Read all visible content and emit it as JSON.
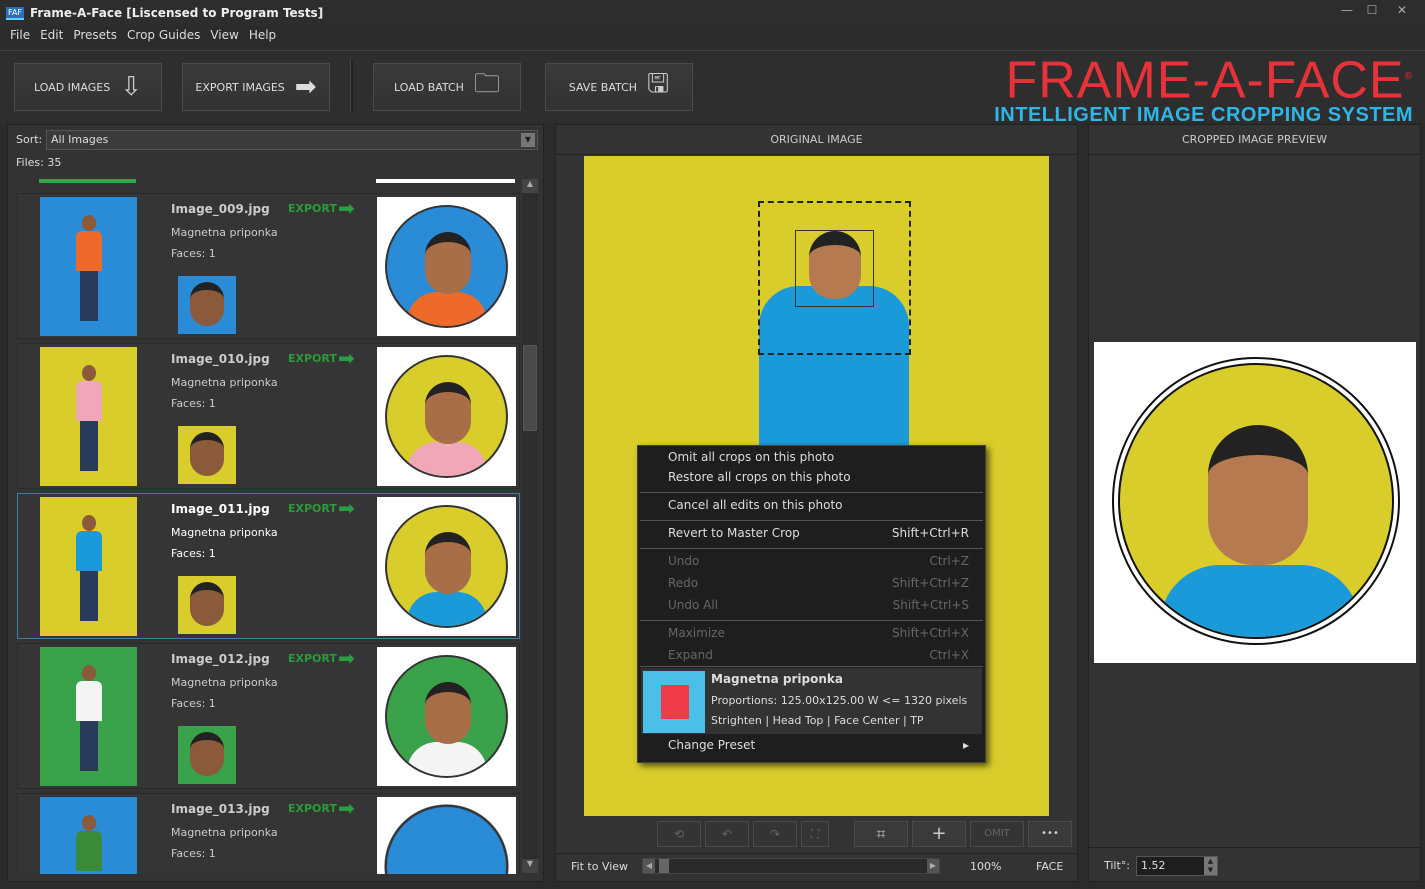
{
  "window": {
    "icon": "FAF",
    "title": "Frame-A-Face [Liscensed to Program Tests]",
    "controls": [
      "minimize-icon",
      "maximize-icon",
      "close-icon"
    ]
  },
  "menu": [
    "File",
    "Edit",
    "Presets",
    "Crop Guides",
    "View",
    "Help"
  ],
  "toolbar": {
    "load_images": "LOAD IMAGES",
    "export_images": "EXPORT IMAGES",
    "load_batch": "LOAD BATCH",
    "save_batch": "SAVE BATCH"
  },
  "logo": {
    "title": "FRAME-A-FACE",
    "registered": "®",
    "tagline": "INTELLIGENT IMAGE CROPPING SYSTEM"
  },
  "left": {
    "sort_label": "Sort:",
    "sort_value": "All Images",
    "files": "Files: 35",
    "items": [
      {
        "name": "Image_009.jpg",
        "preset": "Magnetna priponka",
        "faces": "Faces: 1",
        "export": "EXPORT",
        "bg": "#2a8bd6",
        "shirt": "#ee6a2a",
        "selected": false
      },
      {
        "name": "Image_010.jpg",
        "preset": "Magnetna priponka",
        "faces": "Faces: 1",
        "export": "EXPORT",
        "bg": "#d8cd2a",
        "shirt": "#f0a8b8",
        "selected": false
      },
      {
        "name": "Image_011.jpg",
        "preset": "Magnetna priponka",
        "faces": "Faces: 1",
        "export": "EXPORT",
        "bg": "#d8cd2a",
        "shirt": "#1a9ad8",
        "selected": true
      },
      {
        "name": "Image_012.jpg",
        "preset": "Magnetna priponka",
        "faces": "Faces: 1",
        "export": "EXPORT",
        "bg": "#3aa24a",
        "shirt": "#f4f4f4",
        "selected": false
      },
      {
        "name": "Image_013.jpg",
        "preset": "Magnetna priponka",
        "faces": "Faces: 1",
        "export": "EXPORT",
        "bg": "#2a8bd6",
        "shirt": "#3a8a3a",
        "selected": false
      }
    ]
  },
  "center": {
    "header": "ORIGINAL IMAGE",
    "fit": "Fit to View",
    "zoom": "100%",
    "mode": "FACE",
    "omit": "OMIT",
    "more": "•••",
    "context_menu": {
      "items": [
        {
          "label": "Omit all crops on this photo",
          "shortcut": "",
          "enabled": true
        },
        {
          "label": "Restore all crops on this photo",
          "shortcut": "",
          "enabled": true
        },
        {
          "label": "Cancel all edits on this photo",
          "shortcut": "",
          "enabled": true
        },
        {
          "label": "Revert to Master Crop",
          "shortcut": "Shift+Ctrl+R",
          "enabled": true
        },
        {
          "label": "Undo",
          "shortcut": "Ctrl+Z",
          "enabled": false
        },
        {
          "label": "Redo",
          "shortcut": "Shift+Ctrl+Z",
          "enabled": false
        },
        {
          "label": "Undo All",
          "shortcut": "Shift+Ctrl+S",
          "enabled": false
        },
        {
          "label": "Maximize",
          "shortcut": "Shift+Ctrl+X",
          "enabled": false
        },
        {
          "label": "Expand",
          "shortcut": "Ctrl+X",
          "enabled": false
        }
      ],
      "preset": {
        "name": "Magnetna priponka",
        "proportions": "Proportions: 125.00x125.00  W <= 1320 pixels",
        "options": "Strighten | Head Top | Face Center | TP"
      },
      "change_preset": "Change Preset"
    }
  },
  "right": {
    "header": "CROPPED IMAGE PREVIEW",
    "tilt_label": "Tilt°:",
    "tilt_value": "1.52"
  },
  "colors": {
    "photo_bg": "#d8cd2a",
    "export_green": "#2a9a3a",
    "logo_red": "#e8323a",
    "logo_blue": "#2fb6e6"
  }
}
